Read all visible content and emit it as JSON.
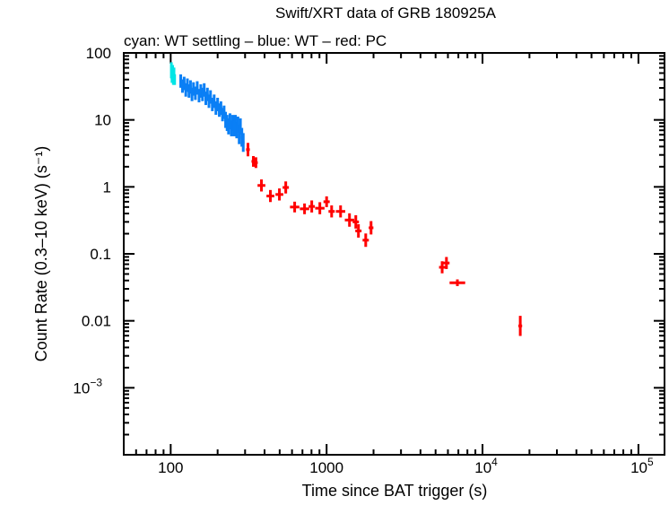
{
  "chart_data": {
    "type": "scatter",
    "title": "Swift/XRT data of GRB 180925A",
    "subtitle": "cyan: WT settling – blue: WT – red: PC",
    "xlabel": "Time since BAT trigger (s)",
    "ylabel": "Count Rate (0.3–10 keV) (s⁻¹)",
    "xscale": "log",
    "yscale": "log",
    "xlim": [
      50,
      147000
    ],
    "ylim": [
      0.0001,
      100
    ],
    "grid": false,
    "x_ticks": [
      {
        "value": 100,
        "label": "100"
      },
      {
        "value": 1000,
        "label": "1000"
      },
      {
        "value": 10000,
        "label": "10",
        "exp": "4"
      },
      {
        "value": 100000,
        "label": "10",
        "exp": "5"
      }
    ],
    "y_ticks": [
      {
        "value": 100,
        "label": "100"
      },
      {
        "value": 10,
        "label": "10"
      },
      {
        "value": 1,
        "label": "1"
      },
      {
        "value": 0.1,
        "label": "0.1"
      },
      {
        "value": 0.01,
        "label": "0.01"
      },
      {
        "value": 0.001,
        "label": "10",
        "exp": "−3"
      }
    ],
    "series": [
      {
        "name": "WT settling",
        "color": "#00e5e5",
        "points": [
          [
            101,
            55,
            0.004,
            0.12
          ],
          [
            102,
            45,
            0.004,
            0.1
          ],
          [
            103,
            50,
            0.004,
            0.12
          ],
          [
            104,
            42,
            0.004,
            0.1
          ],
          [
            105,
            48,
            0.004,
            0.1
          ],
          [
            106,
            40,
            0.004,
            0.08
          ]
        ]
      },
      {
        "name": "WT",
        "color": "#0a7ff5",
        "points": [
          [
            116,
            38,
            0.008,
            0.1
          ],
          [
            119,
            32,
            0.008,
            0.1
          ],
          [
            122,
            35,
            0.008,
            0.1
          ],
          [
            125,
            28,
            0.008,
            0.1
          ],
          [
            128,
            33,
            0.008,
            0.1
          ],
          [
            131,
            27,
            0.008,
            0.1
          ],
          [
            134,
            31,
            0.008,
            0.1
          ],
          [
            137,
            24,
            0.008,
            0.1
          ],
          [
            140,
            29,
            0.008,
            0.1
          ],
          [
            144,
            25,
            0.008,
            0.1
          ],
          [
            148,
            30,
            0.008,
            0.1
          ],
          [
            152,
            23,
            0.008,
            0.1
          ],
          [
            156,
            27,
            0.008,
            0.1
          ],
          [
            160,
            24,
            0.008,
            0.1
          ],
          [
            164,
            28,
            0.008,
            0.1
          ],
          [
            168,
            21,
            0.008,
            0.1
          ],
          [
            172,
            24,
            0.008,
            0.1
          ],
          [
            176,
            19,
            0.008,
            0.1
          ],
          [
            180,
            22,
            0.008,
            0.1
          ],
          [
            185,
            17,
            0.008,
            0.1
          ],
          [
            190,
            19,
            0.008,
            0.1
          ],
          [
            195,
            15,
            0.008,
            0.1
          ],
          [
            200,
            17,
            0.008,
            0.1
          ],
          [
            205,
            14,
            0.008,
            0.1
          ],
          [
            210,
            15,
            0.008,
            0.1
          ],
          [
            215,
            12,
            0.008,
            0.1
          ],
          [
            220,
            13,
            0.008,
            0.1
          ],
          [
            225,
            10,
            0.008,
            0.12
          ],
          [
            230,
            9,
            0.008,
            0.12
          ],
          [
            235,
            8,
            0.008,
            0.12
          ],
          [
            240,
            9.5,
            0.008,
            0.12
          ],
          [
            245,
            7.5,
            0.008,
            0.12
          ],
          [
            250,
            9,
            0.008,
            0.12
          ],
          [
            255,
            7.5,
            0.008,
            0.12
          ],
          [
            260,
            9,
            0.008,
            0.12
          ],
          [
            265,
            7,
            0.008,
            0.12
          ],
          [
            270,
            8.5,
            0.008,
            0.12
          ],
          [
            275,
            6,
            0.008,
            0.14
          ],
          [
            280,
            8,
            0.008,
            0.12
          ],
          [
            286,
            5.5,
            0.008,
            0.14
          ],
          [
            292,
            4.6,
            0.008,
            0.14
          ]
        ]
      },
      {
        "name": "PC",
        "color": "#ff0000",
        "points": [
          [
            313,
            3.6,
            0.012,
            0.1
          ],
          [
            339,
            2.4,
            0.012,
            0.08
          ],
          [
            352,
            2.3,
            0.012,
            0.08
          ],
          [
            382,
            1.05,
            0.025,
            0.09
          ],
          [
            436,
            0.73,
            0.025,
            0.09
          ],
          [
            498,
            0.77,
            0.025,
            0.09
          ],
          [
            547,
            0.98,
            0.02,
            0.09
          ],
          [
            624,
            0.5,
            0.03,
            0.08
          ],
          [
            722,
            0.47,
            0.03,
            0.08
          ],
          [
            803,
            0.51,
            0.02,
            0.09
          ],
          [
            905,
            0.48,
            0.03,
            0.09
          ],
          [
            1000,
            0.6,
            0.02,
            0.08
          ],
          [
            1077,
            0.43,
            0.02,
            0.09
          ],
          [
            1229,
            0.43,
            0.03,
            0.09
          ],
          [
            1402,
            0.32,
            0.03,
            0.1
          ],
          [
            1539,
            0.3,
            0.02,
            0.1
          ],
          [
            1600,
            0.22,
            0.02,
            0.1
          ],
          [
            1782,
            0.16,
            0.02,
            0.1
          ],
          [
            1928,
            0.245,
            0.015,
            0.1
          ],
          [
            5510,
            0.063,
            0.02,
            0.09
          ],
          [
            5870,
            0.073,
            0.02,
            0.09
          ],
          [
            6900,
            0.037,
            0.05,
            0.05
          ],
          [
            17460,
            0.0084,
            0.012,
            0.15
          ]
        ]
      }
    ]
  }
}
